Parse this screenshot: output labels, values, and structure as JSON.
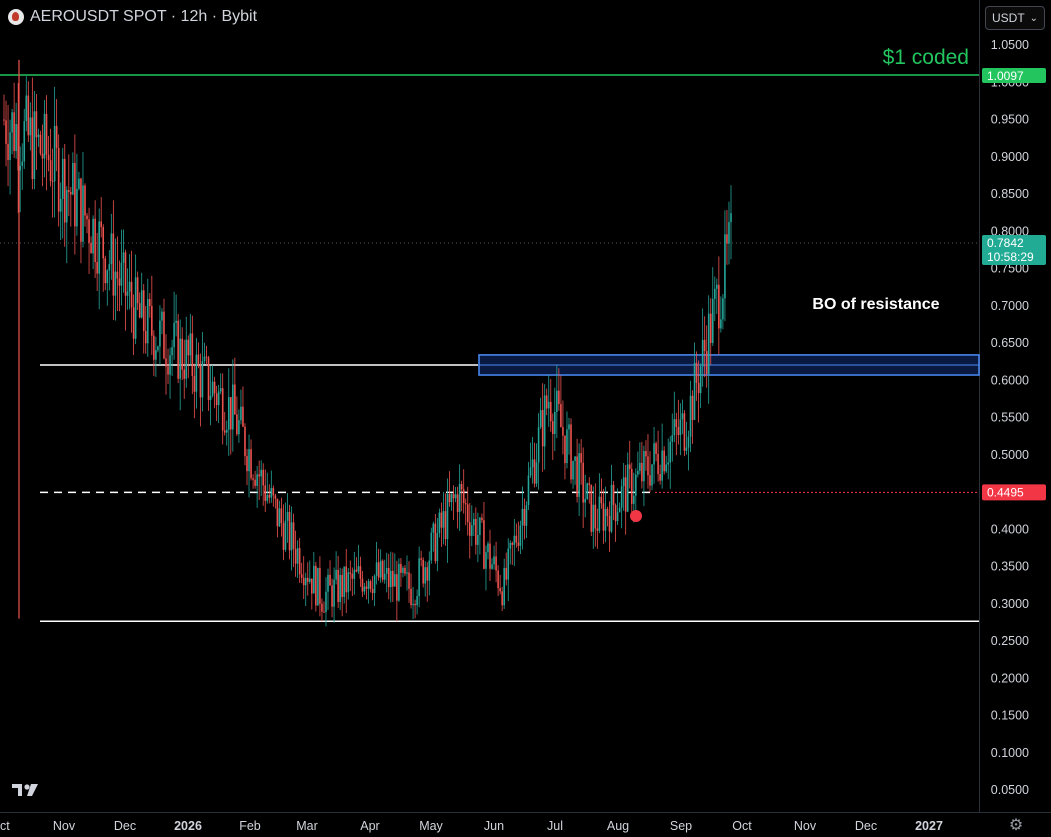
{
  "header": {
    "symbol_title": "AEROUSDT SPOT · 12h · Bybit"
  },
  "currency_select": {
    "value": "USDT"
  },
  "colors": {
    "bg": "#000000",
    "up": "#26a69a",
    "down": "#ef5350",
    "green_line": "#22c55e",
    "blue_zone": "#2962ff",
    "red_level": "#f23645",
    "price_tag": "#22ab94"
  },
  "annotations": {
    "target_label": "$1 coded",
    "breakout_label": "BO of resistance"
  },
  "chart_data": {
    "type": "candlestick",
    "interval": "12h",
    "ylim": [
      0.02,
      1.1
    ],
    "y_ticks": [
      "1.0500",
      "1.0000",
      "0.9500",
      "0.9000",
      "0.8500",
      "0.8000",
      "0.7500",
      "0.7000",
      "0.6500",
      "0.6000",
      "0.5500",
      "0.5000",
      "0.4500",
      "0.4000",
      "0.3500",
      "0.3000",
      "0.2500",
      "0.2000",
      "0.1500",
      "0.1000",
      "0.0500"
    ],
    "x_ticks": [
      "ct",
      "Nov",
      "Dec",
      "2026",
      "Feb",
      "Mar",
      "Apr",
      "May",
      "Jun",
      "Jul",
      "Aug",
      "Sep",
      "Oct",
      "Nov",
      "Dec",
      "2027"
    ],
    "price_path": [
      {
        "x": "Oct",
        "y": 0.95
      },
      {
        "x": "Nov",
        "y": 0.9
      },
      {
        "x": "Nov",
        "y": 0.8
      },
      {
        "x": "Dec",
        "y": 0.68
      },
      {
        "x": "Dec",
        "y": 0.63
      },
      {
        "x": "2026",
        "y": 0.56
      },
      {
        "x": "Feb",
        "y": 0.42
      },
      {
        "x": "Feb",
        "y": 0.31
      },
      {
        "x": "Mar",
        "y": 0.34
      },
      {
        "x": "Apr",
        "y": 0.32
      },
      {
        "x": "May",
        "y": 0.45
      },
      {
        "x": "Jun",
        "y": 0.32
      },
      {
        "x": "Jul",
        "y": 0.58
      },
      {
        "x": "Aug",
        "y": 0.41
      },
      {
        "x": "Sep",
        "y": 0.47
      },
      {
        "x": "Sep",
        "y": 0.54
      },
      {
        "x": "Oct",
        "y": 0.78
      }
    ],
    "levels": {
      "target": 1.0097,
      "resistance": 0.6205,
      "mid_dashed": 0.4495,
      "support": 0.2765,
      "resistance_zone": [
        0.607,
        0.634
      ]
    },
    "last_price": "0.7842",
    "countdown": "10:58:29",
    "level_tags": {
      "target": "1.0097",
      "red": "0.4495"
    }
  }
}
